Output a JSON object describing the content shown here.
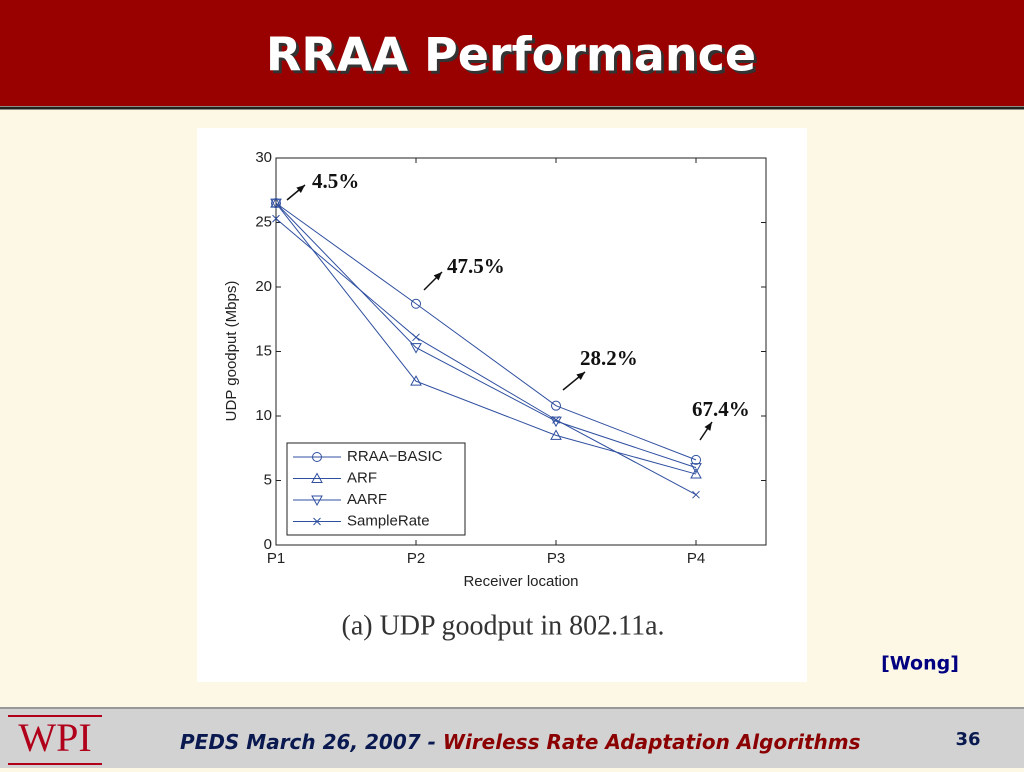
{
  "slide": {
    "title": "RRAA Performance",
    "citation": "[Wong]",
    "footer": {
      "logo": "WPI",
      "event": "PEDS March 26, 2007 -",
      "topic": "Wireless Rate Adaptation Algorithms",
      "page": "36"
    }
  },
  "chart_data": {
    "type": "line",
    "caption": "(a) UDP goodput in 802.11a.",
    "xlabel": "Receiver location",
    "ylabel": "UDP goodput (Mbps)",
    "categories": [
      "P1",
      "P2",
      "P3",
      "P4"
    ],
    "series": [
      {
        "name": "RRAA−BASIC",
        "color": "#2f4f9f",
        "marker": "circle",
        "values": [
          26.5,
          18.7,
          10.8,
          6.6
        ]
      },
      {
        "name": "ARF",
        "color": "#2f4f9f",
        "marker": "triangle-up",
        "values": [
          26.5,
          12.7,
          8.5,
          5.5
        ]
      },
      {
        "name": "AARF",
        "color": "#2f4f9f",
        "marker": "triangle-down",
        "values": [
          26.5,
          15.3,
          9.6,
          6.0
        ]
      },
      {
        "name": "SampleRate",
        "color": "#2f4f9f",
        "marker": "x",
        "values": [
          25.3,
          16.1,
          9.7,
          3.9
        ]
      }
    ],
    "ylim": [
      0,
      30
    ],
    "yticks": [
      0,
      5,
      10,
      15,
      20,
      25,
      30
    ],
    "grid": false,
    "legend": "lower left",
    "annotations": [
      "4.5%",
      "47.5%",
      "28.2%",
      "67.4%"
    ]
  }
}
